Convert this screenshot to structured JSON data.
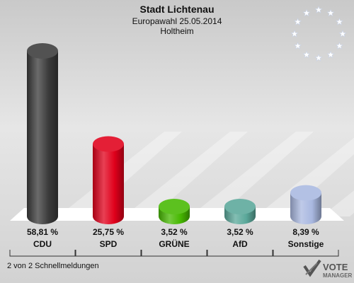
{
  "header": {
    "title": "Stadt Lichtenau",
    "subtitle": "Europawahl 25.05.2014",
    "location": "Holtheim"
  },
  "footer": {
    "status": "2 von 2 Schnellmeldungen"
  },
  "logo": {
    "line1": "VOTE",
    "line2": "MANAGER"
  },
  "chart_data": {
    "type": "bar",
    "title": "Stadt Lichtenau",
    "subtitle": "Europawahl 25.05.2014",
    "categories": [
      "CDU",
      "SPD",
      "GRÜNE",
      "AfD",
      "Sonstige"
    ],
    "values": [
      58.81,
      25.75,
      3.52,
      3.52,
      8.39
    ],
    "value_labels": [
      "58,81 %",
      "25,75 %",
      "3,52 %",
      "3,52 %",
      "8,39 %"
    ],
    "colors": [
      "#3a3a3a",
      "#e0001b",
      "#46b800",
      "#5aa89a",
      "#a9b8e0"
    ],
    "unit": "%",
    "ylim": [
      0,
      58.81
    ],
    "grid": false,
    "legend": "none"
  }
}
